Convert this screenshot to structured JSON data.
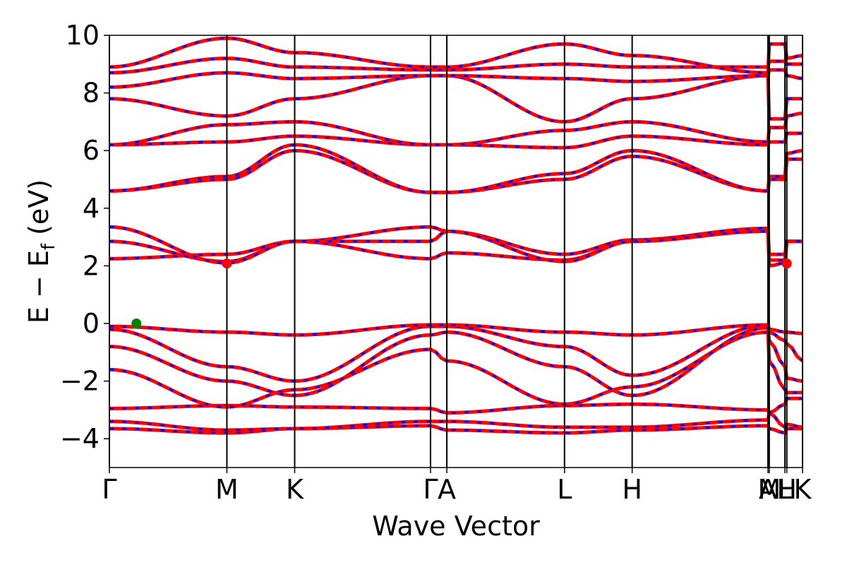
{
  "chart_data": {
    "type": "line",
    "title": "",
    "xlabel": "Wave Vector",
    "ylabel_main": "E − E",
    "ylabel_sub": "f",
    "ylabel_unit": " (eV)",
    "ylim": [
      -5,
      10
    ],
    "yticks": [
      -4,
      -2,
      0,
      2,
      4,
      6,
      8,
      10
    ],
    "ytick_labels": [
      "−4",
      "−2",
      "0",
      "2",
      "4",
      "6",
      "8",
      "10"
    ],
    "xlim": [
      0,
      1
    ],
    "kpoints": [
      {
        "label": "Γ",
        "x": 0.0
      },
      {
        "label": "M",
        "x": 0.1695
      },
      {
        "label": "K",
        "x": 0.2673
      },
      {
        "label": "Γ",
        "x": 0.4633
      },
      {
        "label": "A",
        "x": 0.4868
      },
      {
        "label": "L",
        "x": 0.6566
      },
      {
        "label": "H",
        "x": 0.7542
      },
      {
        "label": "A",
        "x": 0.9501
      },
      {
        "label": "M",
        "x": 0.952
      },
      {
        "label": "L",
        "x": 0.9746
      },
      {
        "label": "H",
        "x": 0.9773
      },
      {
        "label": "K",
        "x": 1.0
      }
    ],
    "series_colors": {
      "spin_up": "#ff0000",
      "spin_down": "#0000ff"
    },
    "markers": [
      {
        "name": "VBM",
        "x": 0.039,
        "y": 0.0,
        "color": "#008000"
      },
      {
        "name": "CBM",
        "x": 0.1695,
        "y": 2.08,
        "color": "#ff0000"
      },
      {
        "name": "CBM",
        "x": 0.9773,
        "y": 2.08,
        "color": "#ff0000"
      }
    ],
    "bands": [
      {
        "y": [
          -3.65,
          -3.8,
          -3.65,
          -3.55,
          -3.7,
          -3.8,
          -3.7,
          -3.55,
          -3.65,
          -3.8,
          -3.65,
          -3.65
        ]
      },
      {
        "y": [
          -3.4,
          -3.7,
          -3.65,
          -3.4,
          -3.4,
          -3.6,
          -3.6,
          -3.35,
          -3.1,
          -3.6,
          -3.5,
          -3.6
        ]
      },
      {
        "y": [
          -2.95,
          -2.85,
          -2.9,
          -2.95,
          -3.1,
          -2.85,
          -2.8,
          -3.0,
          -3.1,
          -2.8,
          -2.6,
          -2.6
        ]
      },
      {
        "y": [
          -1.6,
          -2.9,
          -2.3,
          -0.9,
          -1.3,
          -2.8,
          -2.2,
          -0.3,
          -1.3,
          -2.3,
          -2.4,
          -2.4
        ]
      },
      {
        "y": [
          -0.8,
          -2.0,
          -2.5,
          -0.4,
          -0.3,
          -1.5,
          -2.5,
          -0.15,
          -0.6,
          -1.5,
          -1.9,
          -2.0
        ]
      },
      {
        "y": [
          -0.2,
          -1.5,
          -2.0,
          -0.1,
          -0.1,
          -0.8,
          -1.8,
          -0.05,
          -0.3,
          -0.6,
          -0.7,
          -1.3
        ]
      },
      {
        "y": [
          -0.1,
          -0.3,
          -0.4,
          -0.05,
          -0.05,
          -0.3,
          -0.4,
          -0.05,
          -0.2,
          -0.3,
          -0.3,
          -0.35
        ]
      },
      {
        "y": [
          2.25,
          2.4,
          2.85,
          2.25,
          2.45,
          2.2,
          2.85,
          3.25,
          2.4,
          2.4,
          2.85,
          2.85
        ]
      },
      {
        "y": [
          2.85,
          2.15,
          2.85,
          3.35,
          3.2,
          2.4,
          2.9,
          3.3,
          2.2,
          2.2,
          2.85,
          2.85
        ]
      },
      {
        "y": [
          3.35,
          2.1,
          2.85,
          2.85,
          3.2,
          2.15,
          2.85,
          3.2,
          2.0,
          2.1,
          2.85,
          2.85
        ]
      },
      {
        "y": [
          4.6,
          5.0,
          6.0,
          4.55,
          4.55,
          5.0,
          5.8,
          4.6,
          5.0,
          5.0,
          5.7,
          5.7
        ]
      },
      {
        "y": [
          4.6,
          5.1,
          6.2,
          4.55,
          4.55,
          5.2,
          6.0,
          4.6,
          5.1,
          5.1,
          5.9,
          6.0
        ]
      },
      {
        "y": [
          6.2,
          6.3,
          6.5,
          6.2,
          6.2,
          6.1,
          6.5,
          6.2,
          6.3,
          6.3,
          6.6,
          6.6
        ]
      },
      {
        "y": [
          6.2,
          6.9,
          7.0,
          6.2,
          6.2,
          6.7,
          7.0,
          6.3,
          6.8,
          6.8,
          7.2,
          7.3
        ]
      },
      {
        "y": [
          7.8,
          7.2,
          7.8,
          8.6,
          8.6,
          7.0,
          7.8,
          8.6,
          7.1,
          7.1,
          7.8,
          7.8
        ]
      },
      {
        "y": [
          8.2,
          8.7,
          8.5,
          8.6,
          8.6,
          8.5,
          8.4,
          8.6,
          8.8,
          8.8,
          8.6,
          8.5
        ]
      },
      {
        "y": [
          8.7,
          9.2,
          8.9,
          8.8,
          8.8,
          9.0,
          8.9,
          8.9,
          9.1,
          9.1,
          9.0,
          9.0
        ]
      },
      {
        "y": [
          8.9,
          9.9,
          9.4,
          8.9,
          8.9,
          9.7,
          9.3,
          8.7,
          9.7,
          9.7,
          9.2,
          9.3
        ]
      }
    ]
  }
}
